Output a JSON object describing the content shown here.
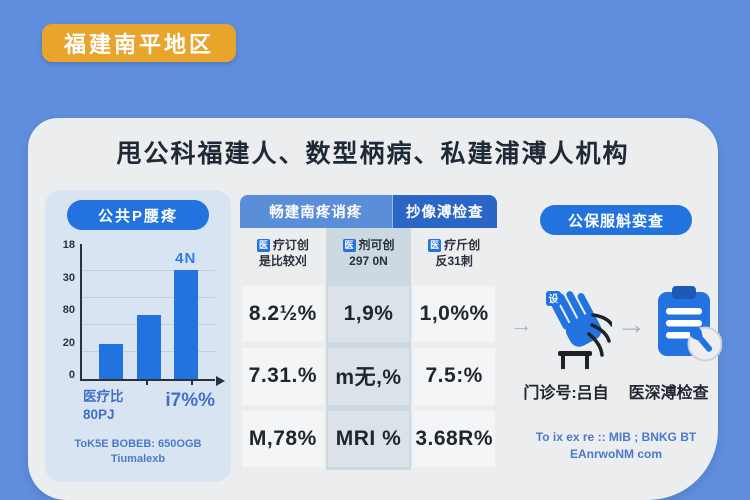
{
  "banner": {
    "label": "福建南平地区"
  },
  "title": "甩公科福建人、数型柄病、私建浦溥人机构",
  "colors": {
    "background": "#5e8edd",
    "banner_orange": "#e9a42c",
    "card": "#ebedee",
    "left_panel": "#d9e4f2",
    "primary_blue": "#2273e0",
    "tab_light": "#5a8ed8",
    "tab_dark": "#2b66c6",
    "column_strip": "#cdd9e0",
    "text_dark": "#1f2a36",
    "text_blue": "#3f6fc6",
    "arrow_gray": "#a9b2ba"
  },
  "icons": {
    "arrow_right": "→",
    "medical_badge": "医",
    "hand_badge": "设"
  },
  "left_panel": {
    "header": "公共P腰疼",
    "x_label_line1": "医疗比",
    "x_label_line2": "80PJ",
    "x_label_right": "i7%%",
    "footnote_line1": "ToK5E BOBEB: 650OGB",
    "footnote_line2": "Tiumalexb"
  },
  "chart_data": {
    "type": "bar",
    "categories": [
      "",
      "",
      ""
    ],
    "values": [
      26,
      48,
      82
    ],
    "ylim": [
      0,
      100
    ],
    "y_tick_labels": [
      "18",
      "30",
      "80",
      "20",
      "0"
    ],
    "bar_label": "4N",
    "title": "公共P腰疼",
    "xlabel": "",
    "ylabel": "",
    "grid": true,
    "legend": false,
    "bar_color": "#2273e0"
  },
  "middle_panel": {
    "tabs": [
      {
        "label": "畅建南疼诮疼"
      },
      {
        "label": "抄像溥检查"
      }
    ],
    "columns": [
      {
        "icon": "医",
        "title": "疗订创",
        "subtitle": "是比较刈",
        "values": [
          "8.2½%",
          "7.31.%",
          "M,78%"
        ]
      },
      {
        "icon": "医",
        "title": "剂可创",
        "subtitle": "297 0N",
        "values": [
          "1,9%",
          "m无,%",
          "MRI %"
        ]
      },
      {
        "icon": "医",
        "title": "疗斤创",
        "subtitle": "反31刺",
        "values": [
          "1,0%%",
          "7.5:%",
          "3.68R%"
        ]
      }
    ]
  },
  "right_panel": {
    "header": "公保服斛娈查",
    "items": [
      {
        "icon": "hand-icon",
        "label": "门诊号:吕自"
      },
      {
        "icon": "clipboard-icon",
        "label": "医深溥检查"
      }
    ],
    "footnote_line1": "To ix ex re :: MIB ; BNKG BT",
    "footnote_line2": "EAnrwoNM com"
  }
}
